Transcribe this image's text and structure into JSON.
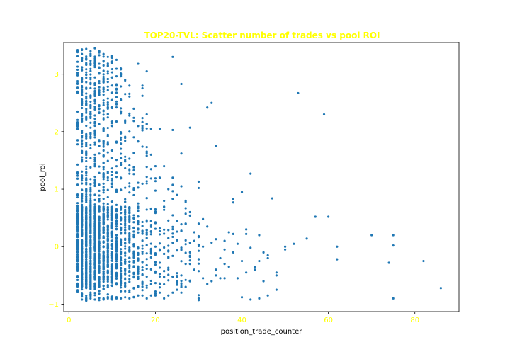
{
  "chart_data": {
    "type": "scatter",
    "title": "TOP20-TVL: Scatter number of trades vs pool ROI",
    "xlabel": "position_trade_counter",
    "ylabel": "pool_roi",
    "xlim": [
      -1.2,
      90.2
    ],
    "ylim": [
      -1.13,
      3.55
    ],
    "xticks": [
      0,
      20,
      40,
      60,
      80
    ],
    "yticks": [
      -1,
      0,
      1,
      2,
      3
    ],
    "grid": false,
    "colors": {
      "marker": "#1f77b4",
      "title": "#ffff00",
      "tick_label": "#ffff00",
      "axis_label": "#000000"
    },
    "dense_columns": [
      {
        "x": 2,
        "y_range": [
          -0.78,
          3.42
        ],
        "count": 140
      },
      {
        "x": 3,
        "y_range": [
          -0.92,
          3.43
        ],
        "count": 200
      },
      {
        "x": 4,
        "y_range": [
          -0.94,
          3.44
        ],
        "count": 260
      },
      {
        "x": 5,
        "y_range": [
          -0.9,
          3.4
        ],
        "count": 200
      },
      {
        "x": 6,
        "y_range": [
          -0.92,
          3.45
        ],
        "count": 190
      },
      {
        "x": 7,
        "y_range": [
          -0.93,
          3.4
        ],
        "count": 140
      },
      {
        "x": 8,
        "y_range": [
          -0.92,
          3.35
        ],
        "count": 170
      },
      {
        "x": 9,
        "y_range": [
          -0.9,
          3.3
        ],
        "count": 120
      },
      {
        "x": 10,
        "y_range": [
          -0.92,
          3.32
        ],
        "count": 130
      },
      {
        "x": 11,
        "y_range": [
          -0.9,
          3.25
        ],
        "count": 90
      },
      {
        "x": 12,
        "y_range": [
          -0.9,
          3.1
        ],
        "count": 90
      },
      {
        "x": 13,
        "y_range": [
          -0.88,
          2.9
        ],
        "count": 70
      },
      {
        "x": 14,
        "y_range": [
          -0.9,
          2.8
        ],
        "count": 60
      },
      {
        "x": 15,
        "y_range": [
          -0.88,
          2.4
        ],
        "count": 45
      },
      {
        "x": 16,
        "y_range": [
          -0.85,
          2.1
        ],
        "count": 40
      },
      {
        "x": 17,
        "y_range": [
          -0.85,
          2.8
        ],
        "count": 30
      },
      {
        "x": 18,
        "y_range": [
          -0.9,
          2.3
        ],
        "count": 30
      },
      {
        "x": 19,
        "y_range": [
          -0.85,
          1.6
        ],
        "count": 20
      },
      {
        "x": 20,
        "y_range": [
          -0.85,
          1.4
        ],
        "count": 20
      },
      {
        "x": 21,
        "y_range": [
          -0.8,
          1.2
        ],
        "count": 14
      },
      {
        "x": 22,
        "y_range": [
          -0.9,
          1.4
        ],
        "count": 14
      },
      {
        "x": 23,
        "y_range": [
          -0.85,
          1.0
        ],
        "count": 12
      },
      {
        "x": 24,
        "y_range": [
          -0.8,
          1.2
        ],
        "count": 12
      },
      {
        "x": 25,
        "y_range": [
          -0.75,
          0.9
        ],
        "count": 10
      },
      {
        "x": 26,
        "y_range": [
          -0.8,
          1.05
        ],
        "count": 10
      },
      {
        "x": 27,
        "y_range": [
          -0.7,
          0.8
        ],
        "count": 8
      },
      {
        "x": 28,
        "y_range": [
          -0.6,
          0.6
        ],
        "count": 8
      },
      {
        "x": 30,
        "y_range": [
          -0.9,
          0.4
        ],
        "count": 10
      }
    ],
    "points": [
      [
        24,
        3.3
      ],
      [
        26,
        2.83
      ],
      [
        18,
        3.05
      ],
      [
        16,
        3.18
      ],
      [
        17,
        2.1
      ],
      [
        19,
        2.05
      ],
      [
        28,
        2.07
      ],
      [
        21,
        2.05
      ],
      [
        24,
        2.03
      ],
      [
        32,
        2.42
      ],
      [
        33,
        2.5
      ],
      [
        34,
        1.75
      ],
      [
        26,
        1.62
      ],
      [
        53,
        2.67
      ],
      [
        59,
        2.3
      ],
      [
        42,
        1.27
      ],
      [
        40,
        0.95
      ],
      [
        38,
        0.83
      ],
      [
        38,
        0.77
      ],
      [
        47,
        0.84
      ],
      [
        30,
        1.13
      ],
      [
        30,
        1.02
      ],
      [
        31,
        0.48
      ],
      [
        32,
        0.35
      ],
      [
        33,
        0.07
      ],
      [
        34,
        0.13
      ],
      [
        36,
        0.1
      ],
      [
        37,
        0.25
      ],
      [
        38,
        0.22
      ],
      [
        41,
        0.22
      ],
      [
        42,
        -0.02
      ],
      [
        44,
        0.2
      ],
      [
        46,
        -0.15
      ],
      [
        46,
        -0.2
      ],
      [
        48,
        -0.45
      ],
      [
        48,
        -0.5
      ],
      [
        48,
        -0.75
      ],
      [
        50,
        0.0
      ],
      [
        50,
        -0.05
      ],
      [
        52,
        0.05
      ],
      [
        55,
        0.14
      ],
      [
        57,
        0.52
      ],
      [
        60,
        0.52
      ],
      [
        62,
        0.0
      ],
      [
        62,
        -0.22
      ],
      [
        70,
        0.2
      ],
      [
        74,
        -0.28
      ],
      [
        75,
        0.2
      ],
      [
        75,
        0.02
      ],
      [
        75,
        -0.9
      ],
      [
        82,
        -0.25
      ],
      [
        86,
        -0.72
      ],
      [
        43,
        -0.35
      ],
      [
        43,
        -0.4
      ],
      [
        44,
        -0.9
      ],
      [
        42,
        -0.92
      ],
      [
        40,
        -0.88
      ],
      [
        46,
        -0.85
      ],
      [
        45,
        -0.6
      ],
      [
        36,
        -0.55
      ],
      [
        35,
        -0.55
      ],
      [
        33,
        -0.6
      ],
      [
        34,
        -0.5
      ],
      [
        32,
        -0.65
      ],
      [
        31,
        -0.55
      ],
      [
        30,
        -0.93
      ],
      [
        35,
        -0.2
      ],
      [
        36,
        -0.3
      ],
      [
        37,
        -0.35
      ],
      [
        39,
        -0.55
      ],
      [
        41,
        -0.45
      ],
      [
        38,
        -0.1
      ],
      [
        40,
        -0.25
      ],
      [
        31,
        0.0
      ],
      [
        29,
        0.1
      ],
      [
        29,
        -0.4
      ],
      [
        28,
        -0.1
      ],
      [
        27,
        -0.3
      ],
      [
        26,
        -0.7
      ],
      [
        25,
        -0.6
      ],
      [
        29,
        0.25
      ],
      [
        27,
        0.4
      ],
      [
        44,
        -0.25
      ],
      [
        45,
        -0.1
      ],
      [
        39,
        0.05
      ],
      [
        41,
        0.3
      ],
      [
        36,
        -0.05
      ],
      [
        34,
        -0.4
      ]
    ]
  }
}
